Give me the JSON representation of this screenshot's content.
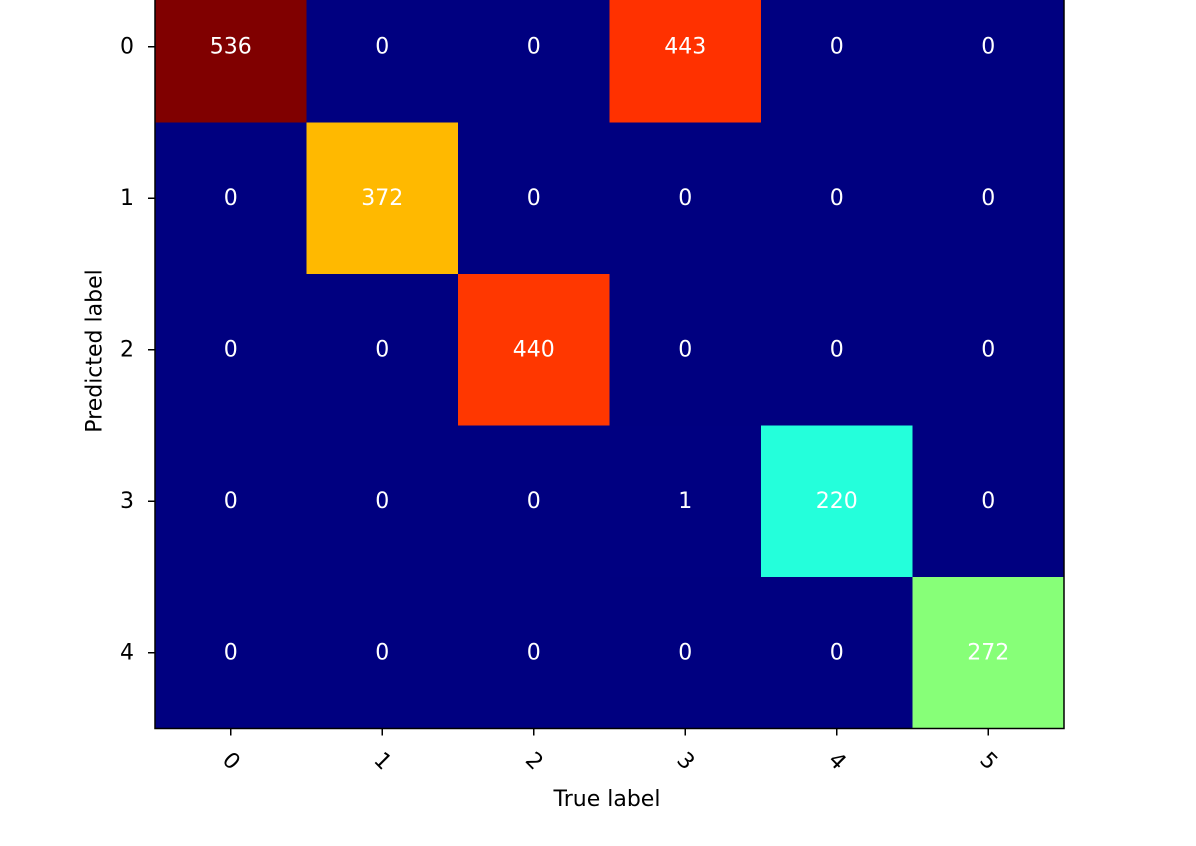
{
  "chart_data": {
    "type": "heatmap",
    "title": "",
    "xlabel": "True label",
    "ylabel": "Predicted label",
    "x_tick_labels": [
      "0",
      "1",
      "2",
      "3",
      "4",
      "5"
    ],
    "y_tick_labels": [
      "0",
      "1",
      "2",
      "3",
      "4"
    ],
    "values": [
      [
        536,
        0,
        0,
        443,
        0,
        0
      ],
      [
        0,
        372,
        0,
        0,
        0,
        0
      ],
      [
        0,
        0,
        440,
        0,
        0,
        0
      ],
      [
        0,
        0,
        0,
        1,
        220,
        0
      ],
      [
        0,
        0,
        0,
        0,
        0,
        272
      ]
    ],
    "colormap": "jet",
    "value_range": [
      0,
      536
    ],
    "x_tick_rotation_deg": 45,
    "grid": false,
    "annotation_color": "#ffffff"
  }
}
